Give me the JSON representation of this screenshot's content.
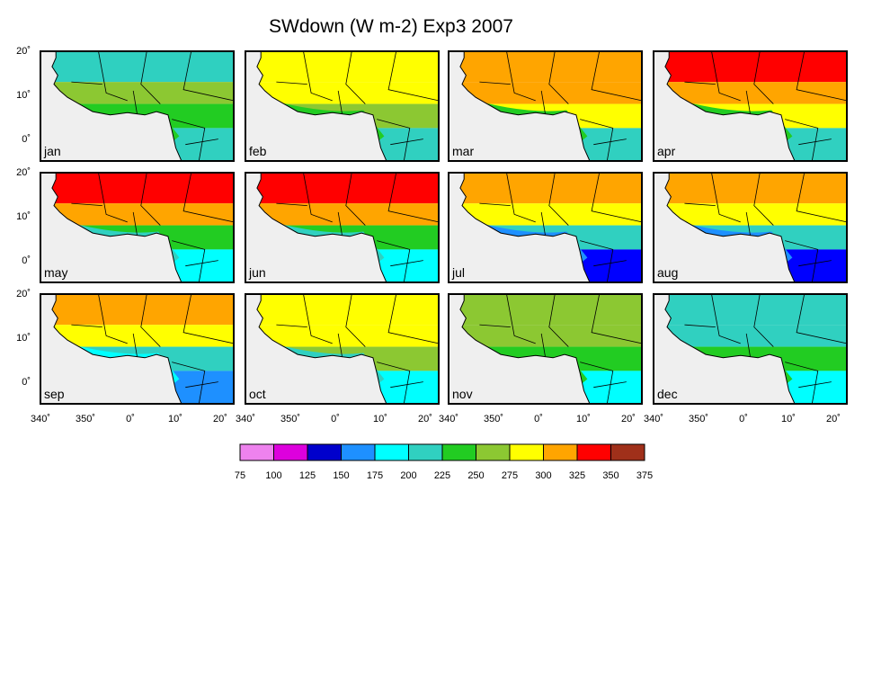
{
  "title": "SWdown (W m-2) Exp3 2007",
  "panels": [
    {
      "label": "jan",
      "north": "#2fd0c0",
      "mid": "#8cc832",
      "south": "#22cc22",
      "coast": "#22cc22",
      "gulf": "#30d0c0"
    },
    {
      "label": "feb",
      "north": "#ffff00",
      "mid": "#ffff00",
      "south": "#8cc832",
      "coast": "#22cc22",
      "gulf": "#30d0c0"
    },
    {
      "label": "mar",
      "north": "#ffa500",
      "mid": "#ffa500",
      "south": "#ffff00",
      "coast": "#22cc22",
      "gulf": "#30d0c0"
    },
    {
      "label": "apr",
      "north": "#ff0000",
      "mid": "#ffa500",
      "south": "#ffff00",
      "coast": "#22cc22",
      "gulf": "#30d0c0"
    },
    {
      "label": "may",
      "north": "#ff0000",
      "mid": "#ffa500",
      "south": "#22cc22",
      "coast": "#30d0c0",
      "gulf": "#00ffff"
    },
    {
      "label": "jun",
      "north": "#ff0000",
      "mid": "#ffa500",
      "south": "#22cc22",
      "coast": "#30d0c0",
      "gulf": "#00ffff"
    },
    {
      "label": "jul",
      "north": "#ffa500",
      "mid": "#ffff00",
      "south": "#30d0c0",
      "coast": "#1e90ff",
      "gulf": "#0000ff"
    },
    {
      "label": "aug",
      "north": "#ffa500",
      "mid": "#ffff00",
      "south": "#30d0c0",
      "coast": "#1e90ff",
      "gulf": "#0000ff"
    },
    {
      "label": "sep",
      "north": "#ffa500",
      "mid": "#ffff00",
      "south": "#30d0c0",
      "coast": "#00ffff",
      "gulf": "#1e90ff"
    },
    {
      "label": "oct",
      "north": "#ffff00",
      "mid": "#ffff00",
      "south": "#8cc832",
      "coast": "#30d0c0",
      "gulf": "#00ffff"
    },
    {
      "label": "nov",
      "north": "#8cc832",
      "mid": "#8cc832",
      "south": "#22cc22",
      "coast": "#22cc22",
      "gulf": "#00ffff"
    },
    {
      "label": "dec",
      "north": "#30d0c0",
      "mid": "#30d0c0",
      "south": "#22cc22",
      "coast": "#22cc22",
      "gulf": "#00ffff"
    }
  ],
  "lat_ticks": [
    "20˚",
    "10˚",
    "0˚"
  ],
  "lon_ticks": [
    "340˚",
    "350˚",
    "0˚",
    "10˚",
    "20˚"
  ],
  "colorbar": {
    "labels": [
      "75",
      "100",
      "125",
      "150",
      "175",
      "200",
      "225",
      "250",
      "275",
      "300",
      "325",
      "350",
      "375"
    ],
    "colors": [
      "#ee82ee",
      "#dd00dd",
      "#0000cc",
      "#1e90ff",
      "#00ffff",
      "#30d0c0",
      "#22cc22",
      "#8cc832",
      "#ffff00",
      "#ffa500",
      "#ff0000",
      "#a0301a"
    ]
  }
}
